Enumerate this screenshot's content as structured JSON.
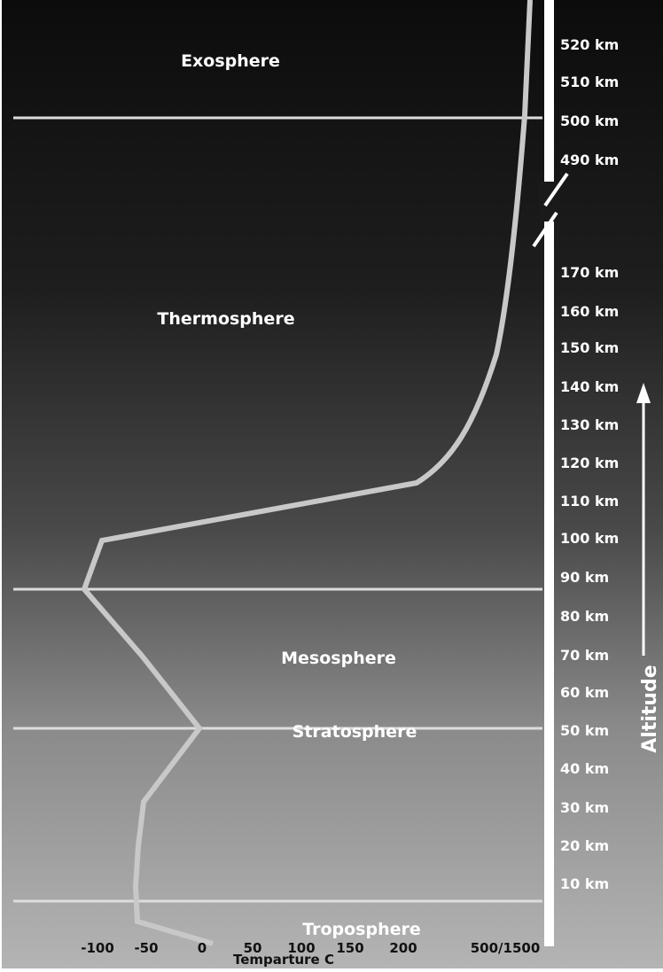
{
  "layers": [
    "Exosphere",
    "Thermosphere",
    "Mesosphere",
    "Stratosphere",
    "Troposphere"
  ],
  "altitude_labels": [
    "520 km",
    "510 km",
    "500 km",
    "490 km",
    "170 km",
    "160 km",
    "150 km",
    "140 km",
    "130 km",
    "120 km",
    "110 km",
    "100 km",
    "90 km",
    "80 km",
    "70 km",
    "60 km",
    "50 km",
    "40 km",
    "30 km",
    "20 km",
    "10 km"
  ],
  "altitude_title": "Altitude",
  "temperature_labels": [
    "-100",
    "-50",
    "0",
    "50",
    "100",
    "150",
    "200",
    "500/1500"
  ],
  "temperature_title": "Temparture C"
}
